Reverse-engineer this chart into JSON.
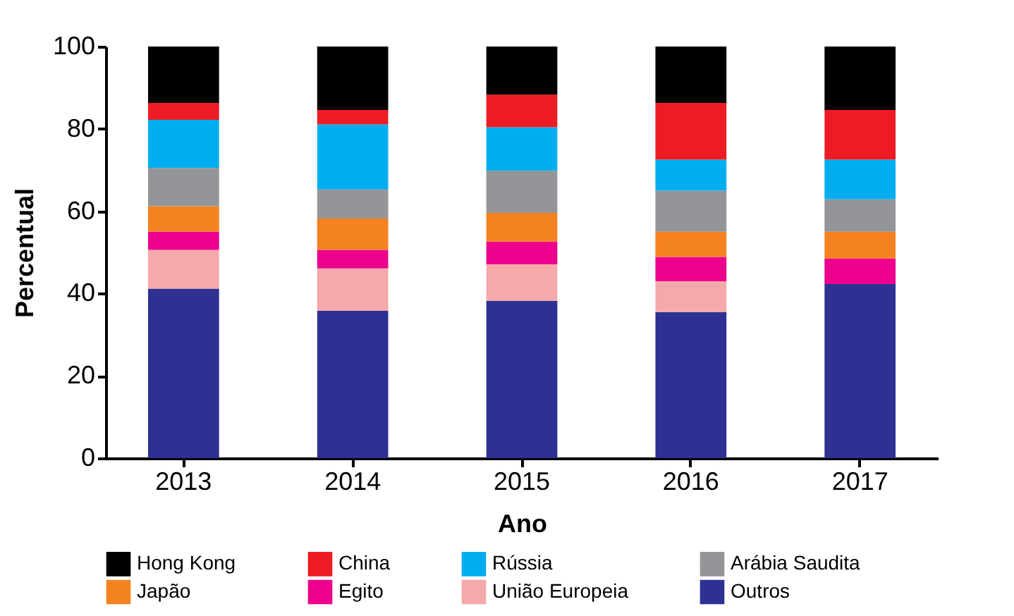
{
  "chart_data": {
    "type": "bar",
    "stacked": true,
    "xlabel": "Ano",
    "ylabel": "Percentual",
    "categories": [
      "2013",
      "2014",
      "2015",
      "2016",
      "2017"
    ],
    "ylim": [
      0,
      100
    ],
    "yticks": [
      0,
      20,
      40,
      60,
      80,
      100
    ],
    "grid": false,
    "legend": "bottom",
    "series": [
      {
        "name": "Outros",
        "color": "#2e3192",
        "values": [
          41.2,
          35.8,
          38.2,
          35.5,
          42.3
        ]
      },
      {
        "name": "União Europeia",
        "color": "#f4a9aa",
        "values": [
          9.4,
          10.3,
          8.9,
          7.5,
          0
        ]
      },
      {
        "name": "Egito",
        "color": "#ec008c",
        "values": [
          4.4,
          4.5,
          5.5,
          5.9,
          6.2
        ]
      },
      {
        "name": "Japão",
        "color": "#f58220",
        "values": [
          6.2,
          7.6,
          7.0,
          6.1,
          6.5
        ]
      },
      {
        "name": "Arábia Saudita",
        "color": "#939598",
        "values": [
          9.3,
          7.1,
          10.2,
          10.0,
          7.9
        ]
      },
      {
        "name": "Rússia",
        "color": "#00aeef",
        "values": [
          11.7,
          15.8,
          10.6,
          7.5,
          9.6
        ]
      },
      {
        "name": "China",
        "color": "#ed1c24",
        "values": [
          4.1,
          3.5,
          7.9,
          13.8,
          12.1
        ]
      },
      {
        "name": "Hong Kong",
        "color": "#000000",
        "values": [
          13.7,
          15.4,
          11.7,
          13.7,
          15.4
        ]
      }
    ]
  }
}
